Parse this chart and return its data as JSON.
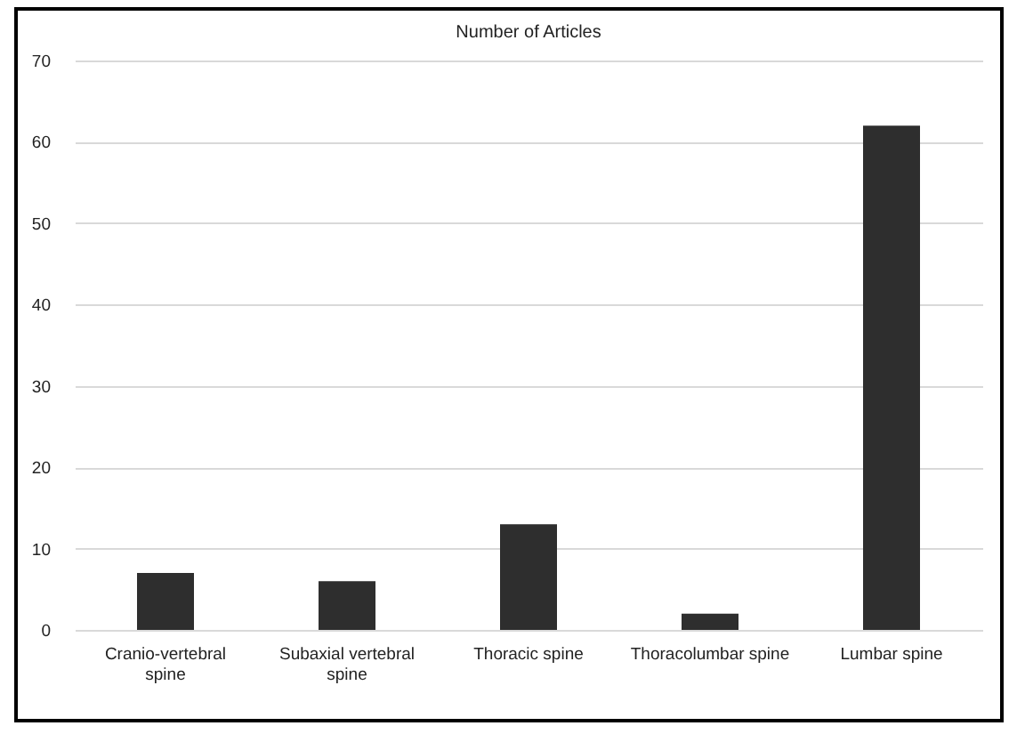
{
  "chart_data": {
    "type": "bar",
    "title": "Number of Articles",
    "categories": [
      "Cranio-vertebral spine",
      "Subaxial vertebral spine",
      "Thoracic spine",
      "Thoracolumbar spine",
      "Lumbar spine"
    ],
    "values": [
      7,
      6,
      13,
      2,
      62
    ],
    "color": "#2e2e2e",
    "ylim": [
      0,
      70
    ],
    "yticks": [
      0,
      10,
      20,
      30,
      40,
      50,
      60,
      70
    ],
    "grid": "y"
  }
}
